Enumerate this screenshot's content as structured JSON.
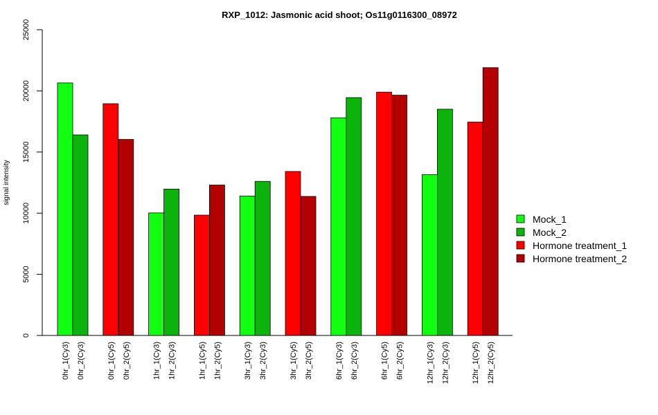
{
  "chart_data": {
    "type": "bar",
    "title": "RXP_1012: Jasmonic acid shoot; Os11g0116300_08972",
    "xlabel": "",
    "ylabel": "signal intensity",
    "ylim": [
      0,
      25000
    ],
    "yticks": [
      0,
      5000,
      10000,
      15000,
      20000,
      25000
    ],
    "grid": false,
    "legend_position": "right",
    "series": [
      {
        "name": "Mock_1",
        "color": "#11ff11"
      },
      {
        "name": "Mock_2",
        "color": "#0db30d"
      },
      {
        "name": "Hormone treatment_1",
        "color": "#ff0000"
      },
      {
        "name": "Hormone treatment_2",
        "color": "#b30000"
      }
    ],
    "bars": [
      {
        "label": "0hr_1(Cy3)",
        "value": 20650,
        "series": 0
      },
      {
        "label": "0hr_2(Cy3)",
        "value": 16400,
        "series": 1
      },
      {
        "label": "0hr_1(Cy5)",
        "value": 18950,
        "series": 2
      },
      {
        "label": "0hr_2(Cy5)",
        "value": 16030,
        "series": 3
      },
      {
        "label": "1hr_1(Cy3)",
        "value": 10020,
        "series": 0
      },
      {
        "label": "1hr_2(Cy3)",
        "value": 11970,
        "series": 1
      },
      {
        "label": "1hr_1(Cy5)",
        "value": 9840,
        "series": 2
      },
      {
        "label": "1hr_2(Cy5)",
        "value": 12300,
        "series": 3
      },
      {
        "label": "3hr_1(Cy3)",
        "value": 11400,
        "series": 0
      },
      {
        "label": "3hr_2(Cy3)",
        "value": 12600,
        "series": 1
      },
      {
        "label": "3hr_1(Cy5)",
        "value": 13410,
        "series": 2
      },
      {
        "label": "3hr_2(Cy5)",
        "value": 11370,
        "series": 3
      },
      {
        "label": "6hr_1(Cy3)",
        "value": 17800,
        "series": 0
      },
      {
        "label": "6hr_2(Cy3)",
        "value": 19450,
        "series": 1
      },
      {
        "label": "6hr_1(Cy5)",
        "value": 19900,
        "series": 2
      },
      {
        "label": "6hr_2(Cy5)",
        "value": 19650,
        "series": 3
      },
      {
        "label": "12hr_1(Cy3)",
        "value": 13150,
        "series": 0
      },
      {
        "label": "12hr_2(Cy3)",
        "value": 18500,
        "series": 1
      },
      {
        "label": "12hr_1(Cy5)",
        "value": 17450,
        "series": 2
      },
      {
        "label": "12hr_2(Cy5)",
        "value": 21900,
        "series": 3
      }
    ]
  }
}
